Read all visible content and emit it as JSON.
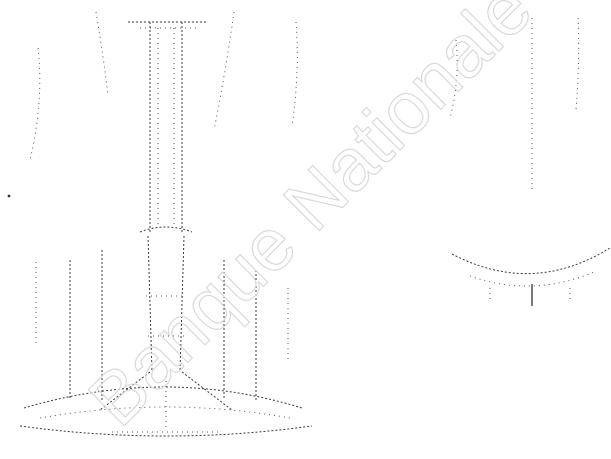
{
  "watermark": {
    "text": "Banque Nationale des Sujets"
  },
  "colors": {
    "line": "#3a3a3a",
    "watermark_outline": "#d9d9d9",
    "background": "#ffffff"
  }
}
